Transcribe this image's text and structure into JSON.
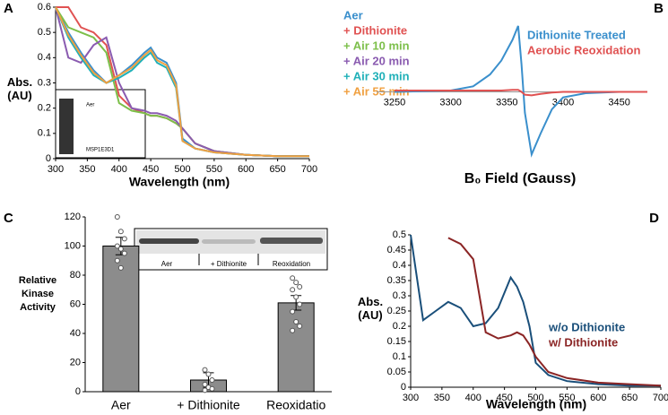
{
  "chart_data": [
    {
      "type": "line",
      "panel": "A",
      "xlabel": "Wavelength (nm)",
      "ylabel": [
        "Abs.",
        "(AU)"
      ],
      "x": [
        300,
        320,
        340,
        360,
        380,
        400,
        420,
        440,
        450,
        460,
        475,
        490,
        500,
        520,
        550,
        600,
        650,
        700
      ],
      "xlim": [
        300,
        700
      ],
      "xticks": [
        300,
        350,
        400,
        450,
        500,
        550,
        600,
        650,
        700
      ],
      "ylim": [
        0,
        0.6
      ],
      "yticks": [
        0,
        0.1,
        0.2,
        0.3,
        0.4,
        0.5,
        0.6
      ],
      "series": [
        {
          "name": "Aer",
          "color": "#3a8fcc",
          "values": [
            0.6,
            0.5,
            0.42,
            0.35,
            0.3,
            0.33,
            0.37,
            0.42,
            0.44,
            0.4,
            0.38,
            0.3,
            0.08,
            0.04,
            0.025,
            0.015,
            0.01,
            0.01
          ]
        },
        {
          "name": "+ Dithionite",
          "color": "#e05252",
          "values": [
            0.6,
            0.6,
            0.52,
            0.5,
            0.45,
            0.25,
            0.2,
            0.18,
            0.17,
            0.17,
            0.16,
            0.14,
            0.12,
            0.06,
            0.03,
            0.015,
            0.01,
            0.01
          ]
        },
        {
          "name": "+ Air 10 min",
          "color": "#7cbf4a",
          "values": [
            0.6,
            0.52,
            0.5,
            0.48,
            0.42,
            0.22,
            0.19,
            0.18,
            0.17,
            0.17,
            0.16,
            0.14,
            0.12,
            0.06,
            0.03,
            0.015,
            0.01,
            0.01
          ]
        },
        {
          "name": "+ Air 20 min",
          "color": "#8a5bb0",
          "values": [
            0.6,
            0.4,
            0.38,
            0.45,
            0.48,
            0.3,
            0.2,
            0.19,
            0.18,
            0.18,
            0.17,
            0.15,
            0.12,
            0.06,
            0.03,
            0.015,
            0.01,
            0.01
          ]
        },
        {
          "name": "+ Air 30 min",
          "color": "#1fb0b8",
          "values": [
            0.6,
            0.48,
            0.4,
            0.33,
            0.3,
            0.32,
            0.35,
            0.4,
            0.42,
            0.38,
            0.36,
            0.28,
            0.07,
            0.04,
            0.025,
            0.015,
            0.01,
            0.01
          ]
        },
        {
          "name": "+ Air 55 min",
          "color": "#f0a040",
          "values": [
            0.6,
            0.49,
            0.41,
            0.34,
            0.3,
            0.33,
            0.36,
            0.41,
            0.43,
            0.39,
            0.37,
            0.29,
            0.07,
            0.04,
            0.025,
            0.015,
            0.01,
            0.01
          ]
        }
      ],
      "inset_labels": [
        "Aer",
        "MSP1E3D1"
      ]
    },
    {
      "type": "line",
      "panel": "B",
      "xlabel": "B₀ Field (Gauss)",
      "x": [
        3250,
        3300,
        3320,
        3335,
        3345,
        3355,
        3360,
        3363,
        3366,
        3372,
        3380,
        3390,
        3400,
        3420,
        3450,
        3475
      ],
      "xlim": [
        3250,
        3475
      ],
      "xticks": [
        3250,
        3300,
        3350,
        3400,
        3450
      ],
      "ylim": [
        -1,
        1
      ],
      "series": [
        {
          "name": "Dithionite Treated",
          "color": "#3a8fcc",
          "values": [
            0,
            0.02,
            0.08,
            0.25,
            0.45,
            0.75,
            0.95,
            0.4,
            -0.3,
            -0.9,
            -0.6,
            -0.25,
            -0.08,
            -0.02,
            0,
            0
          ]
        },
        {
          "name": "Aerobic Reoxidation",
          "color": "#e05252",
          "values": [
            0.02,
            0.02,
            0.02,
            0.02,
            0.02,
            0.03,
            0.03,
            0,
            -0.04,
            -0.05,
            -0.03,
            -0.01,
            0,
            0,
            0,
            0
          ]
        }
      ]
    },
    {
      "type": "bar",
      "panel": "C",
      "ylabel": [
        "Relative",
        "Kinase",
        "Activity"
      ],
      "categories": [
        "Aer",
        "+ Dithionite",
        "Reoxidatio"
      ],
      "values": [
        100,
        8,
        61
      ],
      "errors": [
        6,
        5,
        5
      ],
      "points": [
        [
          120,
          110,
          105,
          100,
          98,
          95,
          90,
          85
        ],
        [
          15,
          12,
          8,
          5,
          3,
          2,
          1
        ],
        [
          78,
          75,
          72,
          70,
          65,
          60,
          55,
          48,
          45,
          42
        ]
      ],
      "color": "#8c8c8c",
      "ylim": [
        0,
        120
      ],
      "yticks": [
        0,
        20,
        40,
        60,
        80,
        100,
        120
      ],
      "inset_labels": [
        "Aer",
        "+ Dithionite",
        "Reoxidation"
      ]
    },
    {
      "type": "line",
      "panel": "D",
      "xlabel": "Wavelength (nm)",
      "ylabel": [
        "Abs.",
        "(AU)"
      ],
      "x": [
        300,
        320,
        340,
        360,
        380,
        400,
        420,
        440,
        460,
        470,
        480,
        490,
        500,
        520,
        550,
        600,
        650,
        700
      ],
      "xlim": [
        300,
        700
      ],
      "xticks": [
        300,
        350,
        400,
        450,
        500,
        550,
        600,
        650,
        700
      ],
      "ylim": [
        0,
        0.5
      ],
      "yticks": [
        0,
        0.05,
        0.1,
        0.15,
        0.2,
        0.25,
        0.3,
        0.35,
        0.4,
        0.45,
        0.5
      ],
      "series": [
        {
          "name": "w/o Dithionite",
          "color": "#1a4f7a",
          "values": [
            0.5,
            0.22,
            0.25,
            0.28,
            0.26,
            0.2,
            0.21,
            0.26,
            0.36,
            0.33,
            0.28,
            0.2,
            0.08,
            0.04,
            0.02,
            0.01,
            0.005,
            0.005
          ]
        },
        {
          "name": "w/ Dithionite",
          "color": "#8b2525",
          "values": [
            null,
            null,
            null,
            0.49,
            0.47,
            0.42,
            0.18,
            0.16,
            0.17,
            0.18,
            0.17,
            0.14,
            0.1,
            0.05,
            0.03,
            0.015,
            0.01,
            0.005
          ]
        }
      ]
    }
  ]
}
